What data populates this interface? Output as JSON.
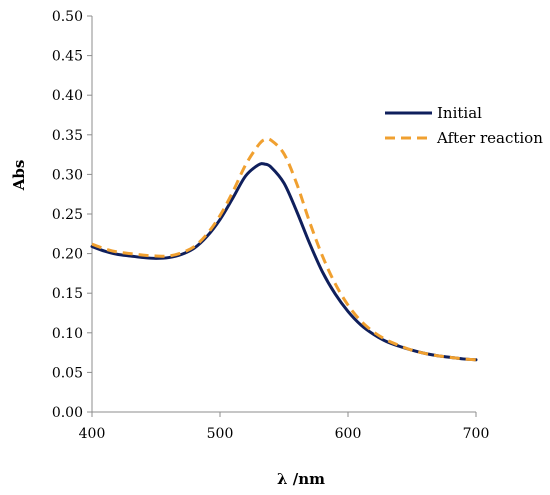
{
  "chart_data": {
    "type": "line",
    "title": "",
    "xlabel": "λ /nm",
    "ylabel": "Abs",
    "xlim": [
      400,
      700
    ],
    "ylim": [
      0,
      0.5
    ],
    "xticks": [
      400,
      500,
      600,
      700
    ],
    "xtick_labels": [
      "400",
      "500",
      "600",
      "700"
    ],
    "yticks": [
      0,
      0.05,
      0.1,
      0.15,
      0.2,
      0.25,
      0.3,
      0.35,
      0.4,
      0.45,
      0.5
    ],
    "ytick_labels": [
      "0.00",
      "0.05",
      "0.10",
      "0.15",
      "0.20",
      "0.25",
      "0.30",
      "0.35",
      "0.40",
      "0.45",
      "0.50"
    ],
    "grid": false,
    "legend_position": "right",
    "series": [
      {
        "name": "Initial",
        "color": "#0f1f5c",
        "style": "solid",
        "x": [
          400,
          410,
          420,
          430,
          440,
          450,
          460,
          470,
          480,
          490,
          500,
          510,
          520,
          530,
          535,
          540,
          550,
          560,
          570,
          580,
          590,
          600,
          610,
          620,
          630,
          640,
          650,
          660,
          670,
          680,
          690,
          700
        ],
        "y": [
          0.209,
          0.203,
          0.199,
          0.197,
          0.195,
          0.194,
          0.195,
          0.199,
          0.207,
          0.222,
          0.243,
          0.27,
          0.298,
          0.312,
          0.313,
          0.309,
          0.289,
          0.253,
          0.213,
          0.177,
          0.149,
          0.127,
          0.11,
          0.098,
          0.089,
          0.083,
          0.078,
          0.074,
          0.071,
          0.069,
          0.067,
          0.066
        ]
      },
      {
        "name": "After reaction",
        "color": "#f0a030",
        "style": "dashed",
        "x": [
          400,
          410,
          420,
          430,
          440,
          450,
          460,
          470,
          480,
          490,
          500,
          510,
          520,
          530,
          535,
          540,
          550,
          560,
          570,
          580,
          590,
          600,
          610,
          620,
          630,
          640,
          650,
          660,
          670,
          680,
          690,
          700
        ],
        "y": [
          0.212,
          0.206,
          0.202,
          0.2,
          0.198,
          0.197,
          0.197,
          0.201,
          0.209,
          0.225,
          0.248,
          0.278,
          0.312,
          0.337,
          0.344,
          0.343,
          0.326,
          0.288,
          0.24,
          0.197,
          0.162,
          0.135,
          0.115,
          0.101,
          0.091,
          0.084,
          0.078,
          0.074,
          0.071,
          0.069,
          0.067,
          0.066
        ]
      }
    ]
  }
}
